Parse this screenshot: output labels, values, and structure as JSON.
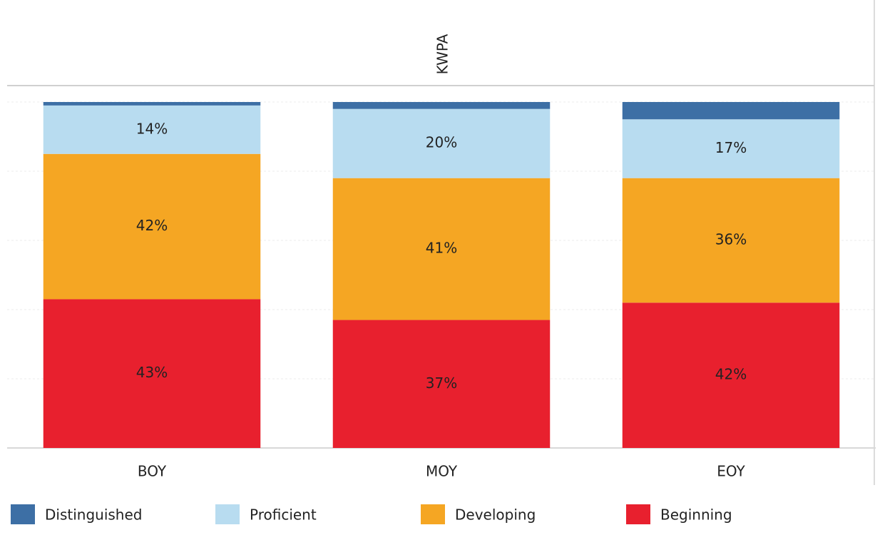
{
  "chart_data": {
    "type": "stacked_bar",
    "title": "KWPA",
    "categories": [
      "BOY",
      "MOY",
      "EOY"
    ],
    "series": [
      {
        "name": "Beginning",
        "color": "#e8202e",
        "values": [
          43,
          37,
          42
        ],
        "value_labels": [
          "43%",
          "37%",
          "42%"
        ]
      },
      {
        "name": "Developing",
        "color": "#f5a623",
        "values": [
          42,
          41,
          36
        ],
        "value_labels": [
          "42%",
          "41%",
          "36%"
        ]
      },
      {
        "name": "Proficient",
        "color": "#b8dcf0",
        "values": [
          14,
          20,
          17
        ],
        "value_labels": [
          "14%",
          "20%",
          "17%"
        ]
      },
      {
        "name": "Distinguished",
        "color": "#3d6fa5",
        "values": [
          1,
          2,
          5
        ]
      }
    ],
    "legend_order": [
      "Distinguished",
      "Proficient",
      "Developing",
      "Beginning"
    ],
    "ylim": [
      0,
      100
    ],
    "yticks": [
      0,
      20,
      40,
      60,
      80,
      100
    ],
    "grid": true
  }
}
